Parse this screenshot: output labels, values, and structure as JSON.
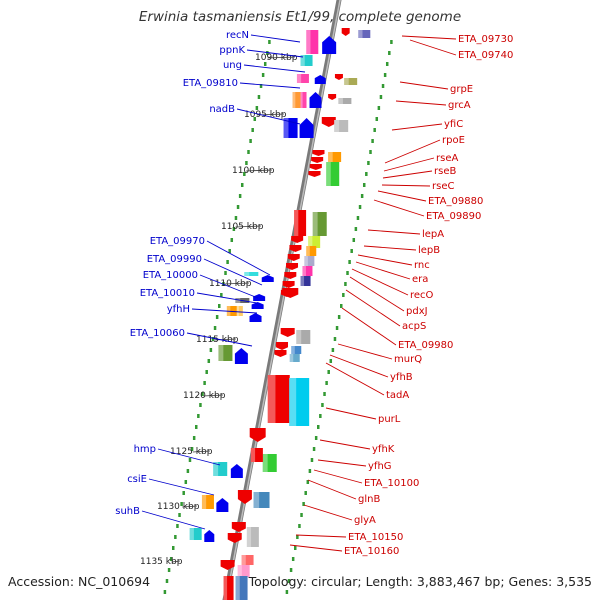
{
  "title": "Erwinia tasmaniensis Et1/99, complete genome",
  "accession": "Accession: NC_010694",
  "topology": "Topology: circular; Length: 3,883,467 bp; Genes: 3,535",
  "colors": {
    "left_label": "#0000cc",
    "right_label": "#cc0000",
    "backbone": "#888888",
    "dots": "#339933"
  },
  "ticks": [
    "1090 kbp",
    "1095 kbp",
    "1100 kbp",
    "1105 kbp",
    "1110 kbp",
    "1115 kbp",
    "1120 kbp",
    "1125 kbp",
    "1130 kbp",
    "1135 kbp"
  ],
  "left_genes": [
    "recN",
    "ppnK",
    "ung",
    "ETA_09810",
    "nadB",
    "ETA_09970",
    "ETA_09990",
    "ETA_10000",
    "ETA_10010",
    "yfhH",
    "ETA_10060",
    "hmp",
    "csiE",
    "suhB"
  ],
  "right_genes": [
    "ETA_09730",
    "ETA_09740",
    "grpE",
    "grcA",
    "yfiC",
    "rpoE",
    "rseA",
    "rseB",
    "rseC",
    "ETA_09880",
    "ETA_09890",
    "lepA",
    "lepB",
    "rnc",
    "era",
    "recO",
    "pdxJ",
    "acpS",
    "ETA_09980",
    "murQ",
    "yfhB",
    "tadA",
    "purL",
    "yfhK",
    "yfhG",
    "ETA_10100",
    "glnB",
    "glyA",
    "ETA_10150",
    "ETA_10160"
  ]
}
